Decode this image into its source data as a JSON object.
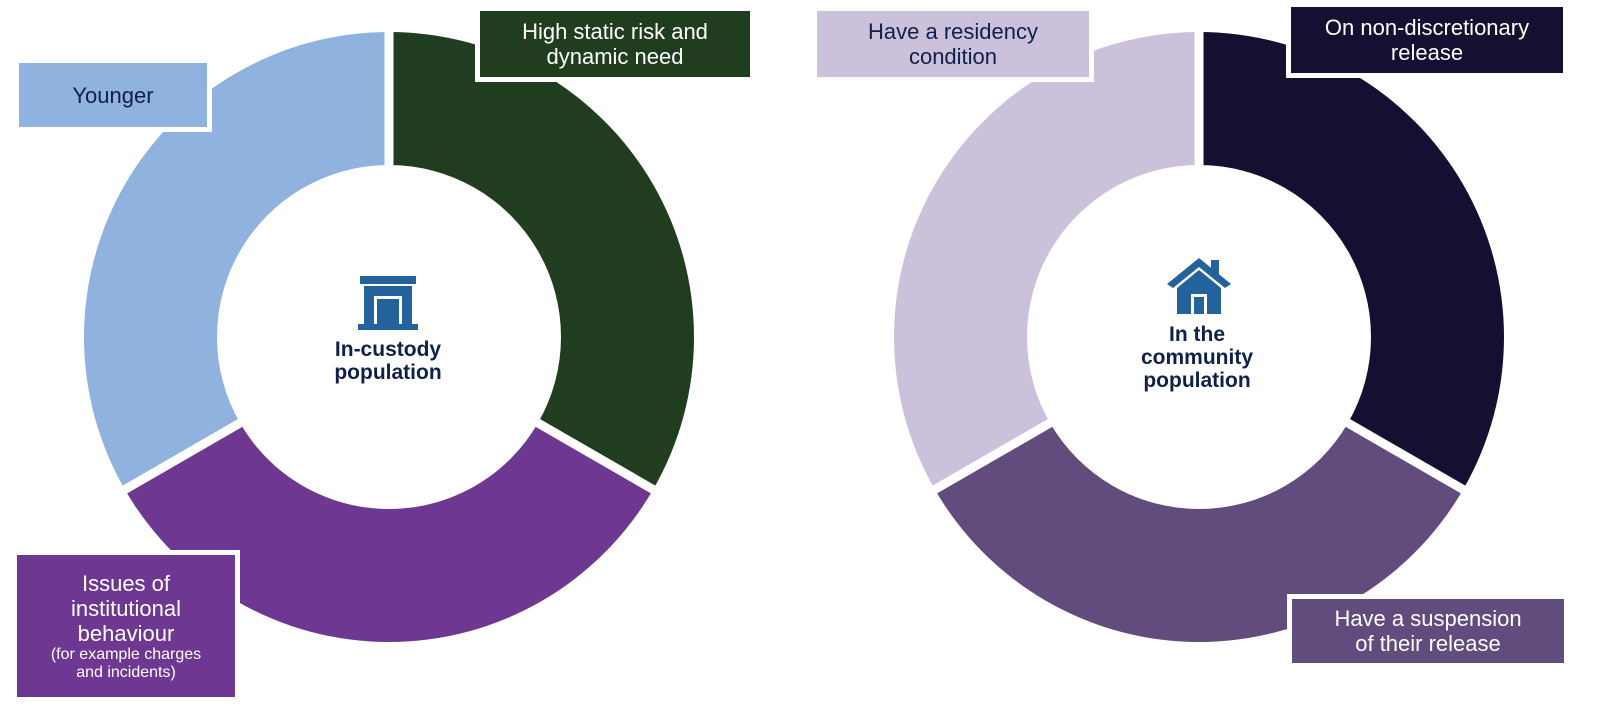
{
  "colors": {
    "custody_dark_green": "#213d1f",
    "custody_purple": "#6e3892",
    "custody_light_blue": "#8fb2df",
    "community_navy": "#131031",
    "community_purple": "#624b7d",
    "community_lavender": "#cbc1db",
    "icon_blue": "#23629a",
    "center_text": "#10204a"
  },
  "left_diagram": {
    "icon": "prison-building-icon",
    "center_title": [
      "In-custody",
      "population"
    ],
    "segments": [
      {
        "label_lines": [
          "High static risk and",
          "dynamic need"
        ],
        "note_lines": [],
        "color_key": "custody_dark_green"
      },
      {
        "label_lines": [
          "Issues of",
          "institutional",
          "behaviour"
        ],
        "note_lines": [
          "(for example charges",
          "and incidents)"
        ],
        "color_key": "custody_purple"
      },
      {
        "label_lines": [
          "Younger"
        ],
        "note_lines": [],
        "color_key": "custody_light_blue"
      }
    ]
  },
  "right_diagram": {
    "icon": "house-icon",
    "center_title": [
      "In the",
      "community",
      "population"
    ],
    "segments": [
      {
        "label_lines": [
          "On non-discretionary",
          "release"
        ],
        "note_lines": [],
        "color_key": "community_navy"
      },
      {
        "label_lines": [
          "Have a suspension",
          "of their release"
        ],
        "note_lines": [],
        "color_key": "community_purple"
      },
      {
        "label_lines": [
          "Have a residency",
          "condition"
        ],
        "note_lines": [],
        "color_key": "community_lavender"
      }
    ]
  }
}
